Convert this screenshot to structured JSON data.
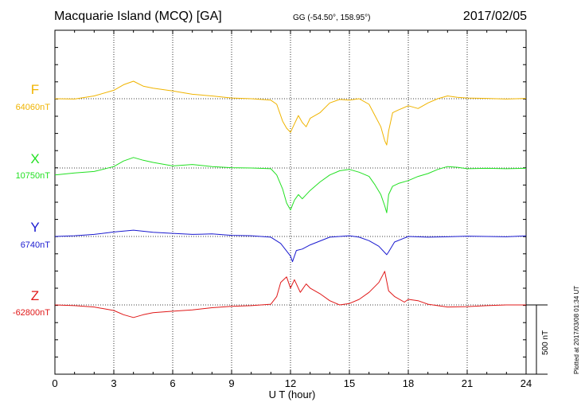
{
  "header": {
    "title": "Macquarie Island (MCQ)  [GA]",
    "coordinates": "GG (-54.50°, 158.95°)",
    "date": "2017/02/05"
  },
  "side_note": "Plotted at 2017/03/08 01:34 UT",
  "scale_bar_label": "500 nT",
  "chart_data": {
    "type": "line",
    "title": "Macquarie Island (MCQ)  [GA]",
    "xlabel": "U T (hour)",
    "ylabel": "",
    "xlim": [
      0,
      24
    ],
    "xticks": [
      0,
      3,
      6,
      9,
      12,
      15,
      18,
      21,
      24
    ],
    "grid": true,
    "units": "nT",
    "scale_bar_nT": 500,
    "series": [
      {
        "name": "F",
        "baseline_label": "64060nT",
        "baseline": 64060,
        "color": "#f0b400",
        "points": [
          [
            0,
            64060
          ],
          [
            1,
            64058
          ],
          [
            2,
            64080
          ],
          [
            3,
            64120
          ],
          [
            3.5,
            64160
          ],
          [
            4,
            64185
          ],
          [
            4.5,
            64150
          ],
          [
            5,
            64135
          ],
          [
            6,
            64115
          ],
          [
            7,
            64092
          ],
          [
            8,
            64080
          ],
          [
            9,
            64065
          ],
          [
            10,
            64060
          ],
          [
            11,
            64050
          ],
          [
            11.3,
            64020
          ],
          [
            11.6,
            63900
          ],
          [
            11.8,
            63850
          ],
          [
            12.0,
            63820
          ],
          [
            12.2,
            63880
          ],
          [
            12.4,
            63940
          ],
          [
            12.6,
            63890
          ],
          [
            12.8,
            63860
          ],
          [
            13.0,
            63920
          ],
          [
            13.5,
            63960
          ],
          [
            14,
            64030
          ],
          [
            14.5,
            64055
          ],
          [
            15,
            64050
          ],
          [
            15.5,
            64060
          ],
          [
            16,
            64020
          ],
          [
            16.3,
            63940
          ],
          [
            16.6,
            63860
          ],
          [
            16.8,
            63760
          ],
          [
            16.9,
            63730
          ],
          [
            17.0,
            63830
          ],
          [
            17.2,
            63960
          ],
          [
            17.5,
            63980
          ],
          [
            18,
            64010
          ],
          [
            18.5,
            63990
          ],
          [
            19,
            64030
          ],
          [
            19.5,
            64060
          ],
          [
            20,
            64080
          ],
          [
            20.5,
            64070
          ],
          [
            21,
            64065
          ],
          [
            22,
            64062
          ],
          [
            23,
            64058
          ],
          [
            24,
            64062
          ]
        ]
      },
      {
        "name": "X",
        "baseline_label": "10750nT",
        "baseline": 10750,
        "color": "#22e022",
        "points": [
          [
            0,
            10700
          ],
          [
            1,
            10715
          ],
          [
            2,
            10725
          ],
          [
            3,
            10760
          ],
          [
            3.5,
            10800
          ],
          [
            4,
            10825
          ],
          [
            4.5,
            10805
          ],
          [
            5,
            10790
          ],
          [
            6,
            10765
          ],
          [
            7,
            10775
          ],
          [
            8,
            10760
          ],
          [
            9,
            10752
          ],
          [
            10,
            10750
          ],
          [
            11,
            10745
          ],
          [
            11.3,
            10700
          ],
          [
            11.6,
            10600
          ],
          [
            11.8,
            10500
          ],
          [
            12.0,
            10450
          ],
          [
            12.2,
            10520
          ],
          [
            12.4,
            10560
          ],
          [
            12.6,
            10530
          ],
          [
            13.0,
            10590
          ],
          [
            13.5,
            10650
          ],
          [
            14,
            10700
          ],
          [
            14.5,
            10730
          ],
          [
            15,
            10740
          ],
          [
            15.5,
            10720
          ],
          [
            16,
            10690
          ],
          [
            16.3,
            10630
          ],
          [
            16.6,
            10560
          ],
          [
            16.8,
            10480
          ],
          [
            16.9,
            10430
          ],
          [
            17.0,
            10560
          ],
          [
            17.2,
            10620
          ],
          [
            17.5,
            10640
          ],
          [
            18,
            10660
          ],
          [
            18.5,
            10690
          ],
          [
            19,
            10710
          ],
          [
            19.5,
            10740
          ],
          [
            20,
            10760
          ],
          [
            20.5,
            10755
          ],
          [
            21,
            10745
          ],
          [
            22,
            10748
          ],
          [
            23,
            10745
          ],
          [
            24,
            10748
          ]
        ]
      },
      {
        "name": "Y",
        "baseline_label": "6740nT",
        "baseline": 6740,
        "color": "#1a1ad0",
        "points": [
          [
            0,
            6740
          ],
          [
            1,
            6745
          ],
          [
            2,
            6755
          ],
          [
            3,
            6772
          ],
          [
            4,
            6785
          ],
          [
            5,
            6770
          ],
          [
            6,
            6762
          ],
          [
            7,
            6755
          ],
          [
            8,
            6758
          ],
          [
            9,
            6748
          ],
          [
            10,
            6745
          ],
          [
            11,
            6735
          ],
          [
            11.5,
            6690
          ],
          [
            12.0,
            6600
          ],
          [
            12.1,
            6560
          ],
          [
            12.3,
            6640
          ],
          [
            12.6,
            6650
          ],
          [
            13,
            6680
          ],
          [
            14,
            6735
          ],
          [
            15,
            6745
          ],
          [
            15.5,
            6735
          ],
          [
            16,
            6710
          ],
          [
            16.5,
            6670
          ],
          [
            16.9,
            6610
          ],
          [
            17.0,
            6630
          ],
          [
            17.3,
            6700
          ],
          [
            18,
            6740
          ],
          [
            19,
            6735
          ],
          [
            20,
            6738
          ],
          [
            21,
            6742
          ],
          [
            22,
            6740
          ],
          [
            23,
            6738
          ],
          [
            24,
            6744
          ]
        ]
      },
      {
        "name": "Z",
        "baseline_label": "-62800nT",
        "baseline": -62800,
        "color": "#e01818",
        "points": [
          [
            0,
            -62800
          ],
          [
            1,
            -62805
          ],
          [
            2,
            -62815
          ],
          [
            3,
            -62840
          ],
          [
            3.5,
            -62870
          ],
          [
            4,
            -62890
          ],
          [
            4.5,
            -62870
          ],
          [
            5,
            -62855
          ],
          [
            6,
            -62845
          ],
          [
            7,
            -62835
          ],
          [
            8,
            -62820
          ],
          [
            9,
            -62810
          ],
          [
            10,
            -62805
          ],
          [
            11,
            -62795
          ],
          [
            11.3,
            -62740
          ],
          [
            11.5,
            -62640
          ],
          [
            11.8,
            -62600
          ],
          [
            12.0,
            -62680
          ],
          [
            12.2,
            -62620
          ],
          [
            12.5,
            -62710
          ],
          [
            12.8,
            -62650
          ],
          [
            13.0,
            -62680
          ],
          [
            13.5,
            -62720
          ],
          [
            14,
            -62770
          ],
          [
            14.5,
            -62800
          ],
          [
            15,
            -62790
          ],
          [
            15.5,
            -62760
          ],
          [
            16,
            -62710
          ],
          [
            16.5,
            -62640
          ],
          [
            16.8,
            -62560
          ],
          [
            17.0,
            -62700
          ],
          [
            17.3,
            -62740
          ],
          [
            17.8,
            -62780
          ],
          [
            18,
            -62760
          ],
          [
            18.5,
            -62770
          ],
          [
            19,
            -62795
          ],
          [
            20,
            -62815
          ],
          [
            21,
            -62812
          ],
          [
            22,
            -62805
          ],
          [
            23,
            -62800
          ],
          [
            24,
            -62800
          ]
        ]
      }
    ]
  }
}
